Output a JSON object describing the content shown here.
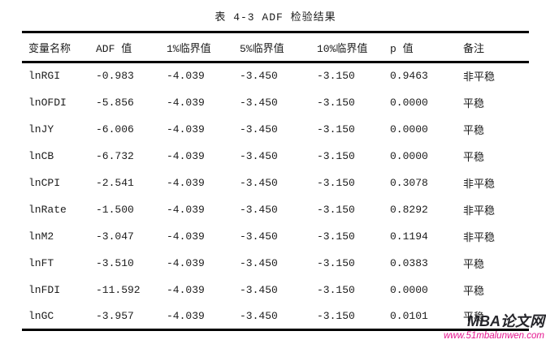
{
  "title": "表 4-3 ADF 检验结果",
  "table": {
    "headers": [
      "变量名称",
      "ADF 值",
      "1%临界值",
      "5%临界值",
      "10%临界值",
      "p 值",
      "备注"
    ],
    "rows": [
      [
        "lnRGI",
        "-0.983",
        "-4.039",
        "-3.450",
        "-3.150",
        "0.9463",
        "非平稳"
      ],
      [
        "lnOFDI",
        "-5.856",
        "-4.039",
        "-3.450",
        "-3.150",
        "0.0000",
        "平稳"
      ],
      [
        "lnJY",
        "-6.006",
        "-4.039",
        "-3.450",
        "-3.150",
        "0.0000",
        "平稳"
      ],
      [
        "lnCB",
        "-6.732",
        "-4.039",
        "-3.450",
        "-3.150",
        "0.0000",
        "平稳"
      ],
      [
        "lnCPI",
        "-2.541",
        "-4.039",
        "-3.450",
        "-3.150",
        "0.3078",
        "非平稳"
      ],
      [
        "lnRate",
        "-1.500",
        "-4.039",
        "-3.450",
        "-3.150",
        "0.8292",
        "非平稳"
      ],
      [
        "lnM2",
        "-3.047",
        "-4.039",
        "-3.450",
        "-3.150",
        "0.1194",
        "非平稳"
      ],
      [
        "lnFT",
        "-3.510",
        "-4.039",
        "-3.450",
        "-3.150",
        "0.0383",
        "平稳"
      ],
      [
        "lnFDI",
        "-11.592",
        "-4.039",
        "-3.450",
        "-3.150",
        "0.0000",
        "平稳"
      ],
      [
        "lnGC",
        "-3.957",
        "-4.039",
        "-3.450",
        "-3.150",
        "0.0101",
        "平稳"
      ]
    ]
  },
  "watermark": {
    "site_name": "MBA论文网",
    "site_url": "www.51mbalunwen.com"
  },
  "colors": {
    "text": "#1c1c1c",
    "rule": "#000000",
    "background": "#ffffff",
    "watermark_name": "#26262b",
    "watermark_url": "#e5168f"
  }
}
